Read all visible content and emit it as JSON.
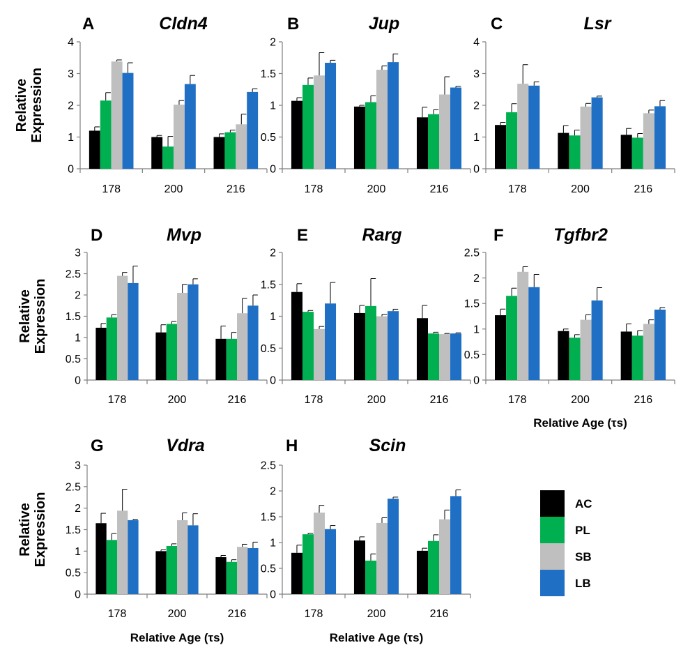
{
  "chart_data": [
    {
      "type": "bar",
      "panel_label": "A",
      "title": "Cldn4",
      "categories": [
        "178",
        "200",
        "216"
      ],
      "ylim": [
        0,
        4
      ],
      "yticks": [
        0,
        1,
        2,
        3,
        4
      ],
      "ylabel": "Relative Expression",
      "xlabel": "",
      "series": [
        {
          "name": "AC",
          "values": [
            1.2,
            1.0,
            1.0
          ],
          "errors": [
            0.12,
            0.05,
            0.1
          ]
        },
        {
          "name": "PL",
          "values": [
            2.15,
            0.7,
            1.15
          ],
          "errors": [
            0.25,
            0.32,
            0.07
          ]
        },
        {
          "name": "SB",
          "values": [
            3.38,
            2.02,
            1.4
          ],
          "errors": [
            0.05,
            0.13,
            0.32
          ]
        },
        {
          "name": "LB",
          "values": [
            3.02,
            2.67,
            2.42
          ],
          "errors": [
            0.32,
            0.27,
            0.1
          ]
        }
      ]
    },
    {
      "type": "bar",
      "panel_label": "B",
      "title": "Jup",
      "categories": [
        "178",
        "200",
        "216"
      ],
      "ylim": [
        0,
        2
      ],
      "yticks": [
        0,
        0.5,
        1,
        1.5,
        2
      ],
      "ylabel": "",
      "xlabel": "",
      "series": [
        {
          "name": "AC",
          "values": [
            1.07,
            0.98,
            0.81
          ],
          "errors": [
            0.05,
            0.02,
            0.16
          ]
        },
        {
          "name": "PL",
          "values": [
            1.32,
            1.05,
            0.86
          ],
          "errors": [
            0.11,
            0.1,
            0.07
          ]
        },
        {
          "name": "SB",
          "values": [
            1.47,
            1.56,
            1.17
          ],
          "errors": [
            0.36,
            0.06,
            0.28
          ]
        },
        {
          "name": "LB",
          "values": [
            1.67,
            1.68,
            1.28
          ],
          "errors": [
            0.04,
            0.13,
            0.02
          ]
        }
      ]
    },
    {
      "type": "bar",
      "panel_label": "C",
      "title": "Lsr",
      "categories": [
        "178",
        "200",
        "216"
      ],
      "ylim": [
        0,
        4
      ],
      "yticks": [
        0,
        1,
        2,
        3,
        4
      ],
      "ylabel": "",
      "xlabel": "",
      "series": [
        {
          "name": "AC",
          "values": [
            1.38,
            1.13,
            1.07
          ],
          "errors": [
            0.08,
            0.23,
            0.2
          ]
        },
        {
          "name": "PL",
          "values": [
            1.78,
            1.05,
            0.98
          ],
          "errors": [
            0.27,
            0.17,
            0.13
          ]
        },
        {
          "name": "SB",
          "values": [
            2.68,
            1.96,
            1.75
          ],
          "errors": [
            0.6,
            0.1,
            0.1
          ]
        },
        {
          "name": "LB",
          "values": [
            2.62,
            2.25,
            1.97
          ],
          "errors": [
            0.12,
            0.04,
            0.18
          ]
        }
      ]
    },
    {
      "type": "bar",
      "panel_label": "D",
      "title": "Mvp",
      "categories": [
        "178",
        "200",
        "216"
      ],
      "ylim": [
        0,
        3
      ],
      "yticks": [
        0,
        0.5,
        1,
        1.5,
        2,
        2.5,
        3
      ],
      "ylabel": "Relative Expression",
      "xlabel": "",
      "series": [
        {
          "name": "AC",
          "values": [
            1.23,
            1.12,
            0.97
          ],
          "errors": [
            0.1,
            0.18,
            0.3
          ]
        },
        {
          "name": "PL",
          "values": [
            1.47,
            1.32,
            0.97
          ],
          "errors": [
            0.07,
            0.06,
            0.15
          ]
        },
        {
          "name": "SB",
          "values": [
            2.45,
            2.05,
            1.57
          ],
          "errors": [
            0.08,
            0.2,
            0.35
          ]
        },
        {
          "name": "LB",
          "values": [
            2.28,
            2.25,
            1.75
          ],
          "errors": [
            0.4,
            0.13,
            0.25
          ]
        }
      ]
    },
    {
      "type": "bar",
      "panel_label": "E",
      "title": "Rarg",
      "categories": [
        "178",
        "200",
        "216"
      ],
      "ylim": [
        0,
        2
      ],
      "yticks": [
        0,
        0.5,
        1,
        1.5,
        2
      ],
      "ylabel": "",
      "xlabel": "",
      "series": [
        {
          "name": "AC",
          "values": [
            1.38,
            1.05,
            0.97
          ],
          "errors": [
            0.13,
            0.12,
            0.2
          ]
        },
        {
          "name": "PL",
          "values": [
            1.07,
            1.16,
            0.73
          ],
          "errors": [
            0.02,
            0.43,
            0.02
          ]
        },
        {
          "name": "SB",
          "values": [
            0.8,
            1.0,
            0.72
          ],
          "errors": [
            0.04,
            0.03,
            0.01
          ]
        },
        {
          "name": "LB",
          "values": [
            1.2,
            1.08,
            0.73
          ],
          "errors": [
            0.33,
            0.03,
            0.01
          ]
        }
      ]
    },
    {
      "type": "bar",
      "panel_label": "F",
      "title": "Tgfbr2",
      "categories": [
        "178",
        "200",
        "216"
      ],
      "ylim": [
        0,
        2.5
      ],
      "yticks": [
        0,
        0.5,
        1,
        1.5,
        2,
        2.5
      ],
      "ylabel": "",
      "xlabel": "Relative Age (τs)",
      "series": [
        {
          "name": "AC",
          "values": [
            1.27,
            0.96,
            0.95
          ],
          "errors": [
            0.12,
            0.04,
            0.15
          ]
        },
        {
          "name": "PL",
          "values": [
            1.65,
            0.83,
            0.87
          ],
          "errors": [
            0.15,
            0.06,
            0.1
          ]
        },
        {
          "name": "SB",
          "values": [
            2.12,
            1.18,
            1.1
          ],
          "errors": [
            0.1,
            0.1,
            0.08
          ]
        },
        {
          "name": "LB",
          "values": [
            1.82,
            1.56,
            1.38
          ],
          "errors": [
            0.25,
            0.25,
            0.04
          ]
        }
      ]
    },
    {
      "type": "bar",
      "panel_label": "G",
      "title": "Vdra",
      "categories": [
        "178",
        "200",
        "216"
      ],
      "ylim": [
        0,
        3
      ],
      "yticks": [
        0,
        0.5,
        1,
        1.5,
        2,
        2.5,
        3
      ],
      "ylabel": "Relative Expression",
      "xlabel": "Relative Age (τs)",
      "series": [
        {
          "name": "AC",
          "values": [
            1.65,
            1.0,
            0.86
          ],
          "errors": [
            0.23,
            0.03,
            0.04
          ]
        },
        {
          "name": "PL",
          "values": [
            1.26,
            1.12,
            0.75
          ],
          "errors": [
            0.15,
            0.05,
            0.05
          ]
        },
        {
          "name": "SB",
          "values": [
            1.94,
            1.72,
            1.1
          ],
          "errors": [
            0.5,
            0.17,
            0.06
          ]
        },
        {
          "name": "LB",
          "values": [
            1.72,
            1.6,
            1.07
          ],
          "errors": [
            0.02,
            0.27,
            0.14
          ]
        }
      ]
    },
    {
      "type": "bar",
      "panel_label": "H",
      "title": "Scin",
      "categories": [
        "178",
        "200",
        "216"
      ],
      "ylim": [
        0,
        2.5
      ],
      "yticks": [
        0,
        0.5,
        1,
        1.5,
        2,
        2.5
      ],
      "ylabel": "",
      "xlabel": "Relative Age (τs)",
      "series": [
        {
          "name": "AC",
          "values": [
            0.8,
            1.04,
            0.84
          ],
          "errors": [
            0.15,
            0.07,
            0.05
          ]
        },
        {
          "name": "PL",
          "values": [
            1.16,
            0.65,
            1.03
          ],
          "errors": [
            0.02,
            0.13,
            0.12
          ]
        },
        {
          "name": "SB",
          "values": [
            1.58,
            1.38,
            1.45
          ],
          "errors": [
            0.14,
            0.1,
            0.18
          ]
        },
        {
          "name": "LB",
          "values": [
            1.26,
            1.85,
            1.9
          ],
          "errors": [
            0.07,
            0.03,
            0.12
          ]
        }
      ]
    }
  ],
  "legend": {
    "placement": "bottom-right",
    "items": [
      {
        "label": "AC",
        "color": "#000000"
      },
      {
        "label": "PL",
        "color": "#00b050"
      },
      {
        "label": "SB",
        "color": "#bfbfbf"
      },
      {
        "label": "LB",
        "color": "#1f6fc5"
      }
    ]
  }
}
